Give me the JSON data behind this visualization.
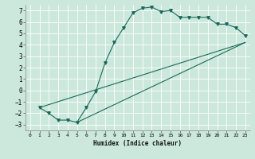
{
  "xlabel": "Humidex (Indice chaleur)",
  "bg_color": "#cce8dc",
  "grid_color": "#b0d8c8",
  "line_color": "#1a6a5a",
  "xlim": [
    -0.5,
    23.5
  ],
  "ylim": [
    -3.5,
    7.5
  ],
  "xticks": [
    0,
    1,
    2,
    3,
    4,
    5,
    6,
    7,
    8,
    9,
    10,
    11,
    12,
    13,
    14,
    15,
    16,
    17,
    18,
    19,
    20,
    21,
    22,
    23
  ],
  "yticks": [
    -3,
    -2,
    -1,
    0,
    1,
    2,
    3,
    4,
    5,
    6,
    7
  ],
  "curve1_x": [
    1,
    2,
    3,
    4,
    5,
    6,
    7,
    8,
    9,
    10,
    11,
    12,
    13,
    14,
    15,
    16,
    17,
    18,
    19,
    20,
    21,
    22,
    23
  ],
  "curve1_y": [
    -1.5,
    -2.0,
    -2.6,
    -2.6,
    -2.8,
    -1.5,
    -0.1,
    2.4,
    4.2,
    5.5,
    6.8,
    7.2,
    7.3,
    6.9,
    7.0,
    6.4,
    6.4,
    6.4,
    6.4,
    5.8,
    5.8,
    5.5,
    4.8
  ],
  "curve2_x": [
    1,
    23
  ],
  "curve2_y": [
    -1.5,
    4.2
  ],
  "curve3_x": [
    5,
    23
  ],
  "curve3_y": [
    -2.8,
    4.2
  ],
  "markers_x": [
    1,
    2,
    3,
    4,
    5,
    6,
    7,
    8,
    9,
    10,
    11,
    12,
    13,
    14,
    15,
    16,
    17,
    18,
    19,
    20,
    21,
    22,
    23
  ],
  "markers_y": [
    -1.5,
    -2.0,
    -2.6,
    -2.6,
    -2.8,
    -1.5,
    -0.1,
    2.4,
    4.2,
    5.5,
    6.8,
    7.2,
    7.3,
    6.9,
    7.0,
    6.4,
    6.4,
    6.4,
    6.4,
    5.8,
    5.8,
    5.5,
    4.8
  ]
}
